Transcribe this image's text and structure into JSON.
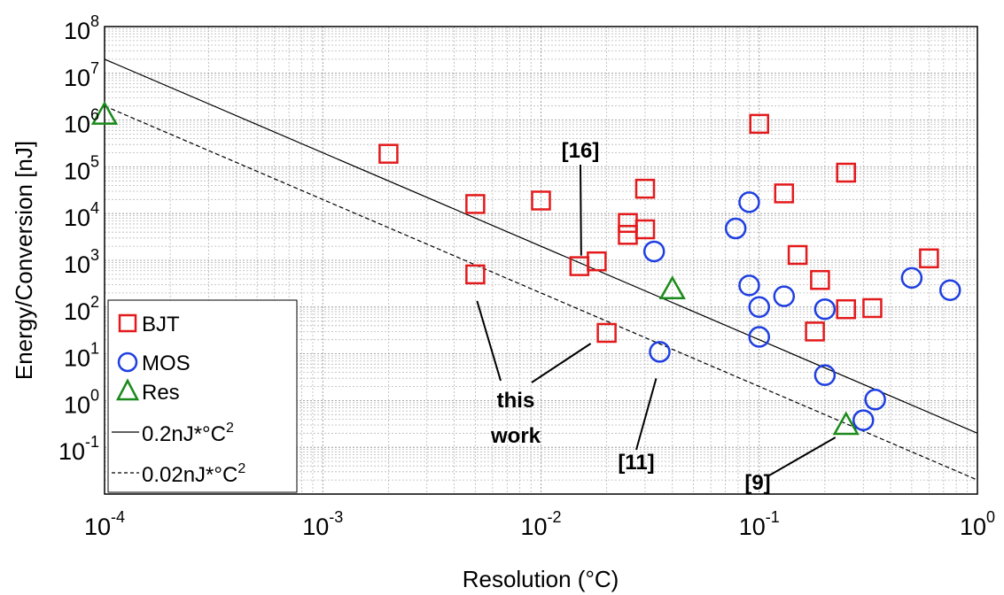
{
  "chart_data": {
    "type": "scatter",
    "xscale": "log",
    "yscale": "log",
    "xlim": [
      0.0001,
      1
    ],
    "ylim": [
      0.01,
      100000000
    ],
    "grid": true,
    "xlabel": "Resolution (°C)",
    "ylabel": "Energy/Conversion [nJ]",
    "x_ticks": [
      {
        "base": "10",
        "exp": "-4",
        "value": 0.0001
      },
      {
        "base": "10",
        "exp": "-3",
        "value": 0.001
      },
      {
        "base": "10",
        "exp": "-2",
        "value": 0.01
      },
      {
        "base": "10",
        "exp": "-1",
        "value": 0.1
      },
      {
        "base": "10",
        "exp": "0",
        "value": 1
      }
    ],
    "y_ticks": [
      {
        "base": "10",
        "exp": "8",
        "value": 100000000
      },
      {
        "base": "10",
        "exp": "7",
        "value": 10000000
      },
      {
        "base": "10",
        "exp": "6",
        "value": 1000000
      },
      {
        "base": "10",
        "exp": "5",
        "value": 100000
      },
      {
        "base": "10",
        "exp": "4",
        "value": 10000
      },
      {
        "base": "10",
        "exp": "3",
        "value": 1000
      },
      {
        "base": "10",
        "exp": "2",
        "value": 100
      },
      {
        "base": "10",
        "exp": "1",
        "value": 10
      },
      {
        "base": "10",
        "exp": "0",
        "value": 1
      },
      {
        "base": "10",
        "exp": "-1",
        "value": 0.1
      }
    ],
    "legend_position": "bottom-left",
    "series": [
      {
        "name": "BJT",
        "marker": "square",
        "color": "#e31a1c",
        "points": [
          {
            "x": 0.002,
            "y": 190000
          },
          {
            "x": 0.005,
            "y": 16000
          },
          {
            "x": 0.005,
            "y": 500
          },
          {
            "x": 0.01,
            "y": 19000
          },
          {
            "x": 0.015,
            "y": 750
          },
          {
            "x": 0.018,
            "y": 950
          },
          {
            "x": 0.02,
            "y": 28
          },
          {
            "x": 0.025,
            "y": 6300
          },
          {
            "x": 0.025,
            "y": 3500
          },
          {
            "x": 0.03,
            "y": 34000
          },
          {
            "x": 0.03,
            "y": 4600
          },
          {
            "x": 0.1,
            "y": 830000
          },
          {
            "x": 0.13,
            "y": 27000
          },
          {
            "x": 0.15,
            "y": 1300
          },
          {
            "x": 0.18,
            "y": 30
          },
          {
            "x": 0.19,
            "y": 380
          },
          {
            "x": 0.25,
            "y": 75000
          },
          {
            "x": 0.25,
            "y": 90
          },
          {
            "x": 0.33,
            "y": 95
          },
          {
            "x": 0.6,
            "y": 1100
          }
        ]
      },
      {
        "name": "MOS",
        "marker": "circle",
        "color": "#1f3fe0",
        "points": [
          {
            "x": 0.033,
            "y": 1550
          },
          {
            "x": 0.035,
            "y": 11
          },
          {
            "x": 0.078,
            "y": 4800
          },
          {
            "x": 0.09,
            "y": 17500
          },
          {
            "x": 0.09,
            "y": 290
          },
          {
            "x": 0.1,
            "y": 100
          },
          {
            "x": 0.1,
            "y": 23
          },
          {
            "x": 0.13,
            "y": 170
          },
          {
            "x": 0.2,
            "y": 90
          },
          {
            "x": 0.2,
            "y": 3.5
          },
          {
            "x": 0.3,
            "y": 0.38
          },
          {
            "x": 0.34,
            "y": 1.05
          },
          {
            "x": 0.5,
            "y": 420
          },
          {
            "x": 0.75,
            "y": 230
          }
        ]
      },
      {
        "name": "Res",
        "marker": "triangle",
        "color": "#1a8a1a",
        "points": [
          {
            "x": 0.0001,
            "y": 1300000
          },
          {
            "x": 0.04,
            "y": 240
          },
          {
            "x": 0.25,
            "y": 0.3
          }
        ]
      }
    ],
    "lines": [
      {
        "name": "0.2nJ*°C",
        "sup": "2",
        "style": "solid",
        "constant": 0.2
      },
      {
        "name": "0.02nJ*°C",
        "sup": "2",
        "style": "dashed",
        "constant": 0.02
      }
    ],
    "annotations": [
      {
        "text": "[16]",
        "x": 0.015,
        "y": 750
      },
      {
        "text": "this",
        "x": 0.005,
        "y": 500
      },
      {
        "text": "work",
        "x": 0.02,
        "y": 28
      },
      {
        "text": "[11]",
        "x": 0.035,
        "y": 11
      },
      {
        "text": "[9]",
        "x": 0.25,
        "y": 0.3
      }
    ]
  }
}
